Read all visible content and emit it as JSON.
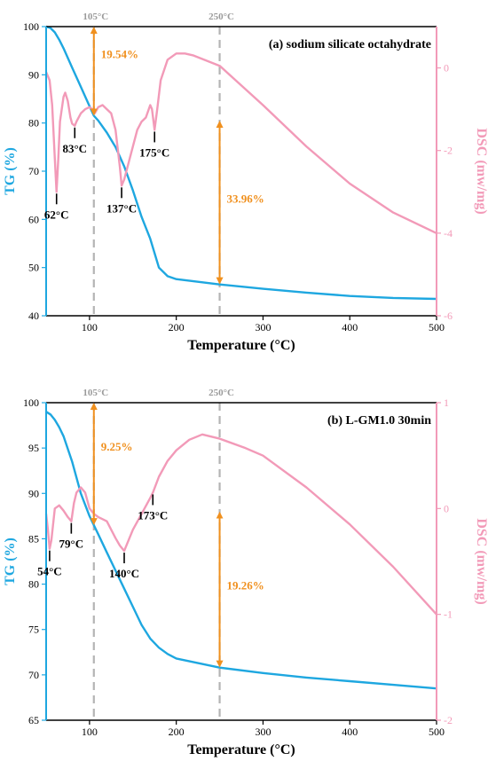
{
  "colors": {
    "tg": "#1ea7e0",
    "dsc": "#f29ab8",
    "arrow": "#f0901e",
    "ref": "#b4b4b4"
  },
  "chart_data": [
    {
      "type": "line",
      "title": "(a) sodium silicate octahydrate",
      "xlabel": "Temperature (°C)",
      "ylabel_left": "TG (%)",
      "ylabel_right": "DSC (mw/mg)",
      "xlim": [
        50,
        500
      ],
      "ylim_left": [
        40,
        100
      ],
      "ylim_right": [
        -6,
        1
      ],
      "xticks": [
        100,
        200,
        300,
        400,
        500
      ],
      "yticks_left": [
        40,
        50,
        60,
        70,
        80,
        90,
        100
      ],
      "yticks_right": [
        -6,
        -4,
        -2,
        0
      ],
      "reference_lines": [
        {
          "x": 105,
          "label": "105°C"
        },
        {
          "x": 250,
          "label": "250°C"
        }
      ],
      "series": [
        {
          "name": "TG",
          "axis": "left",
          "x": [
            50,
            55,
            60,
            65,
            70,
            80,
            90,
            100,
            105,
            110,
            120,
            130,
            140,
            150,
            160,
            170,
            175,
            180,
            190,
            200,
            250,
            300,
            350,
            400,
            450,
            500
          ],
          "y": [
            100,
            99.7,
            98.8,
            97.3,
            95.5,
            91.5,
            87.5,
            83.5,
            81.5,
            80.5,
            78,
            75,
            71,
            66,
            60.5,
            56,
            53,
            50,
            48.2,
            47.6,
            46.5,
            45.6,
            44.8,
            44.1,
            43.7,
            43.5
          ]
        },
        {
          "name": "DSC",
          "axis": "right",
          "x": [
            50,
            54,
            57,
            60,
            62,
            64,
            66,
            70,
            72,
            75,
            78,
            80,
            83,
            85,
            90,
            95,
            100,
            103,
            106,
            110,
            115,
            120,
            125,
            130,
            135,
            137,
            140,
            145,
            150,
            155,
            160,
            165,
            170,
            172,
            175,
            178,
            182,
            190,
            200,
            210,
            220,
            250,
            300,
            350,
            400,
            450,
            500
          ],
          "y": [
            -0.1,
            -0.3,
            -0.9,
            -2.2,
            -3.0,
            -2.2,
            -1.3,
            -0.7,
            -0.6,
            -0.8,
            -1.2,
            -1.35,
            -1.4,
            -1.3,
            -1.1,
            -1.0,
            -0.95,
            -1.0,
            -1.1,
            -0.95,
            -0.9,
            -1.0,
            -1.1,
            -1.5,
            -2.4,
            -2.85,
            -2.7,
            -2.3,
            -1.9,
            -1.5,
            -1.3,
            -1.2,
            -0.9,
            -1.0,
            -1.5,
            -1.0,
            -0.3,
            0.2,
            0.35,
            0.35,
            0.3,
            0.05,
            -0.9,
            -1.9,
            -2.8,
            -3.5,
            -4.0
          ]
        }
      ],
      "peak_labels": [
        {
          "x": 62,
          "y": -3.0,
          "text": "62°C"
        },
        {
          "x": 83,
          "y": -1.4,
          "text": "83°C"
        },
        {
          "x": 137,
          "y": -2.85,
          "text": "137°C"
        },
        {
          "x": 175,
          "y": -1.5,
          "text": "175°C"
        }
      ],
      "mass_loss": [
        {
          "x": 105,
          "from": 100,
          "to": 81.5,
          "label": "19.54%"
        },
        {
          "x": 250,
          "from": 80.5,
          "to": 46.5,
          "label": "33.96%"
        }
      ]
    },
    {
      "type": "line",
      "title": "(b) L-GM1.0 30min",
      "xlabel": "Temperature (°C)",
      "ylabel_left": "TG (%)",
      "ylabel_right": "DSC (mw/mg)",
      "xlim": [
        50,
        500
      ],
      "ylim_left": [
        65,
        100
      ],
      "ylim_right": [
        -2,
        1
      ],
      "xticks": [
        100,
        200,
        300,
        400,
        500
      ],
      "yticks_left": [
        65,
        70,
        75,
        80,
        85,
        90,
        95,
        100
      ],
      "yticks_right": [
        -2,
        -1,
        0,
        1
      ],
      "reference_lines": [
        {
          "x": 105,
          "label": "105°C"
        },
        {
          "x": 250,
          "label": "250°C"
        }
      ],
      "series": [
        {
          "name": "TG",
          "axis": "left",
          "x": [
            50,
            55,
            60,
            65,
            70,
            80,
            90,
            100,
            105,
            110,
            120,
            140,
            150,
            160,
            170,
            180,
            190,
            200,
            250,
            300,
            350,
            400,
            450,
            500
          ],
          "y": [
            99,
            98.7,
            98.1,
            97.3,
            96.3,
            93.5,
            90,
            87.5,
            86.5,
            85.5,
            83.5,
            79.5,
            77.5,
            75.5,
            74,
            73,
            72.3,
            71.8,
            70.8,
            70.2,
            69.7,
            69.3,
            68.9,
            68.5
          ]
        },
        {
          "name": "DSC",
          "axis": "right",
          "x": [
            50,
            52,
            54,
            56,
            60,
            65,
            70,
            75,
            79,
            82,
            85,
            90,
            95,
            100,
            105,
            110,
            115,
            120,
            125,
            130,
            135,
            140,
            145,
            150,
            160,
            170,
            173,
            180,
            190,
            200,
            215,
            230,
            250,
            280,
            300,
            350,
            400,
            450,
            500
          ],
          "y": [
            -0.05,
            -0.2,
            -0.38,
            -0.3,
            0.0,
            0.03,
            -0.02,
            -0.08,
            -0.12,
            0.05,
            0.15,
            0.2,
            0.15,
            0.0,
            -0.05,
            -0.08,
            -0.1,
            -0.12,
            -0.2,
            -0.28,
            -0.35,
            -0.4,
            -0.3,
            -0.2,
            -0.05,
            0.1,
            0.15,
            0.3,
            0.45,
            0.55,
            0.65,
            0.7,
            0.66,
            0.57,
            0.5,
            0.2,
            -0.15,
            -0.55,
            -1.0
          ]
        }
      ],
      "peak_labels": [
        {
          "x": 54,
          "y": -0.38,
          "text": "54°C"
        },
        {
          "x": 79,
          "y": -0.12,
          "text": "79°C"
        },
        {
          "x": 140,
          "y": -0.4,
          "text": "140°C"
        },
        {
          "x": 173,
          "y": 0.15,
          "text": "173°C"
        }
      ],
      "mass_loss": [
        {
          "x": 105,
          "from": 100,
          "to": 86.5,
          "label": "9.25%"
        },
        {
          "x": 250,
          "from": 88,
          "to": 70.8,
          "label": "19.26%"
        }
      ]
    }
  ]
}
